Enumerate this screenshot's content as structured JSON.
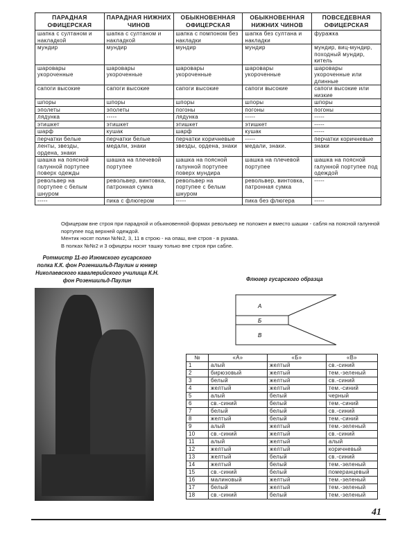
{
  "uniform_table": {
    "headers": [
      "ПАРАДНАЯ ОФИЦЕРСКАЯ",
      "ПАРАДНАЯ НИЖНИХ ЧИНОВ",
      "ОБЫКНОВЕННАЯ ОФИЦЕРСКАЯ",
      "ОБЫКНОВЕННАЯ НИЖНИХ ЧИНОВ",
      "ПОВСЕДЕВНАЯ ОФИЦЕРСКАЯ"
    ],
    "rows": [
      [
        "шапка с султаном и накладкой",
        "шапка с султаном и накладкой",
        "шапка с помпоном без накладки",
        "шапка без султана и накладки",
        "фуражка"
      ],
      [
        "мундир",
        "мундир",
        "мундир",
        "мундир",
        "мундир, виц-мундир, походный мундир, китель"
      ],
      [
        "шаровары укороченные",
        "шаровары укороченные",
        "шаровары укороченные",
        "шаровары укороченные",
        "шаровары укороченные или длинные"
      ],
      [
        "сапоги высокие",
        "сапоги высокие",
        "сапоги высокие",
        "сапоги высокие",
        "сапоги высокие или низкие"
      ],
      [
        "шпоры",
        "шпоры",
        "шпоры",
        "шпоры",
        "шпоры"
      ],
      [
        "эполеты",
        "эполеты",
        "погоны",
        "погоны",
        "погоны"
      ],
      [
        "лядунка",
        "-----",
        "лядунка",
        "-----",
        "-----"
      ],
      [
        "этишкет",
        "этишкет",
        "этишкет",
        "этишкет",
        "-----"
      ],
      [
        "шарф",
        "кушак",
        "шарф",
        "кушак",
        "-----"
      ],
      [
        "перчатки белые",
        "перчатки белые",
        "перчатки коричневые",
        "-----",
        "перчатки коричневые"
      ],
      [
        "ленты, звезды, ордена, знаки",
        "медали, знаки",
        "звезды, ордена, знаки",
        "медали, знаки.",
        "знаки"
      ],
      [
        "шашка на поясной галунной портупее поверх одежды",
        "шашка на плечевой портупее",
        "шашка на поясной галунной портупее поверх мундира",
        "шашка на плечевой портупее",
        "шашка на поясной галунной портупее под одеждой"
      ],
      [
        "револьвер на портупее с белым шнуром",
        "револьвер, винтовка, патронная сумка",
        "револьвер на портупее с белым шнуром",
        "револьвер, винтовка, патронная сумка",
        "-----"
      ],
      [
        "-----",
        "пика с флюгером",
        "-----",
        "пика без флюгера",
        "-----"
      ]
    ]
  },
  "notes": [
    "Офицерам вне строя при парадной и обыкновенной формах револьвер не положен и вместо шашки - сабля на поясной галунной портупее под верхней одеждой.",
    "Ментик носят полки №№2, 3, 11 в строю - на опаш, вне строя - в рукава.",
    "В полках №№2 и 3 офицеры носят ташку только вне строя при сабле."
  ],
  "photo_caption": "Ротмистр 11-го Изюмского гусарского полка К.К. фон Розеншильд-Паулин и юнкер Николаевского кавалерийского училища К.Н. фон Розеншильд-Паулин",
  "flag": {
    "caption": "Флюгер гусарского образца",
    "labels": [
      "А",
      "Б",
      "В"
    ]
  },
  "color_table": {
    "headers": [
      "№",
      "«А»",
      "«Б»",
      "«В»"
    ],
    "rows": [
      [
        "1",
        "алый",
        "желтый",
        "св.-синий"
      ],
      [
        "2",
        "бирюзовый",
        "желтый",
        "тем.-зеленый"
      ],
      [
        "3",
        "белый",
        "желтый",
        "св.-синий"
      ],
      [
        "4",
        "желтый",
        "желтый",
        "тем.-синий"
      ],
      [
        "5",
        "алый",
        "белый",
        "черный"
      ],
      [
        "6",
        "св.-синий",
        "белый",
        "тем.-синий"
      ],
      [
        "7",
        "белый",
        "белый",
        "св.-синий"
      ],
      [
        "8",
        "желтый",
        "белый",
        "тем.-синий"
      ],
      [
        "9",
        "алый",
        "желтый",
        "тем.-зеленый"
      ],
      [
        "10",
        "св.-синий",
        "желтый",
        "св.-синий"
      ],
      [
        "11",
        "алый",
        "желтый",
        "алый"
      ],
      [
        "12",
        "желтый",
        "желтый",
        "коричневый"
      ],
      [
        "13",
        "желтый",
        "белый",
        "св.-синий"
      ],
      [
        "14",
        "желтый",
        "белый",
        "тем.-зеленый"
      ],
      [
        "15",
        "св.-синий",
        "белый",
        "померанцевый"
      ],
      [
        "16",
        "малиновый",
        "желтый",
        "тем.-зеленый"
      ],
      [
        "17",
        "белый",
        "желтый",
        "тем.-зеленый"
      ],
      [
        "18",
        "св.-синий",
        "белый",
        "тем.-зеленый"
      ]
    ]
  },
  "page_number": "41"
}
